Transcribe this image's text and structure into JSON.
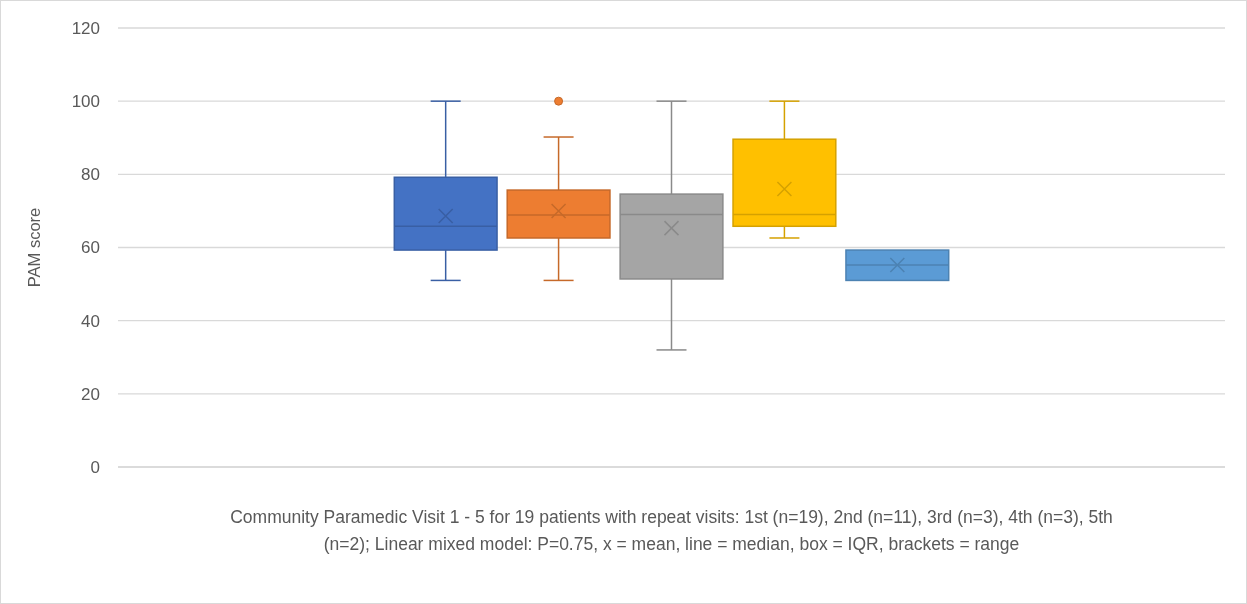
{
  "chart_data": {
    "type": "box",
    "ylabel": "PAM score",
    "xlabel": "Community Paramedic Visit 1 - 5 for 19 patients with repeat visits: 1st (n=19), 2nd (n=11), 3rd (n=3), 4th (n=3), 5th (n=2); Linear mixed model: P=0.75, x = mean, line = median, box = IQR, brackets = range",
    "categories": [
      null
    ],
    "ylim": [
      0,
      120
    ],
    "yticks": [
      0,
      20,
      40,
      60,
      80,
      100,
      120
    ],
    "grid": "y",
    "series": [
      {
        "color": "#4472c4",
        "boxes": [
          {
            "low": 51,
            "q1": 59.3,
            "median": 65.8,
            "q3": 79.2,
            "high": 100,
            "mean": 68.6
          }
        ]
      },
      {
        "color": "#ed7d31",
        "boxes": [
          {
            "low": 51,
            "q1": 62.6,
            "median": 68.9,
            "q3": 75.7,
            "high": 90.2,
            "mean": 70,
            "outliers": [
              100
            ]
          }
        ]
      },
      {
        "color": "#a5a5a5",
        "boxes": [
          {
            "low": 32,
            "q1": 51.4,
            "median": 69,
            "q3": 74.6,
            "high": 100,
            "mean": 65.3
          }
        ]
      },
      {
        "color": "#ffc000",
        "boxes": [
          {
            "low": 62.6,
            "q1": 65.8,
            "median": 69,
            "q3": 89.6,
            "high": 100,
            "mean": 76
          }
        ]
      },
      {
        "color": "#5b9bd5",
        "boxes": [
          {
            "low": 51,
            "q1": 51,
            "median": 55.2,
            "q3": 59.3,
            "high": 59.3,
            "mean": 55.2
          }
        ]
      }
    ]
  }
}
